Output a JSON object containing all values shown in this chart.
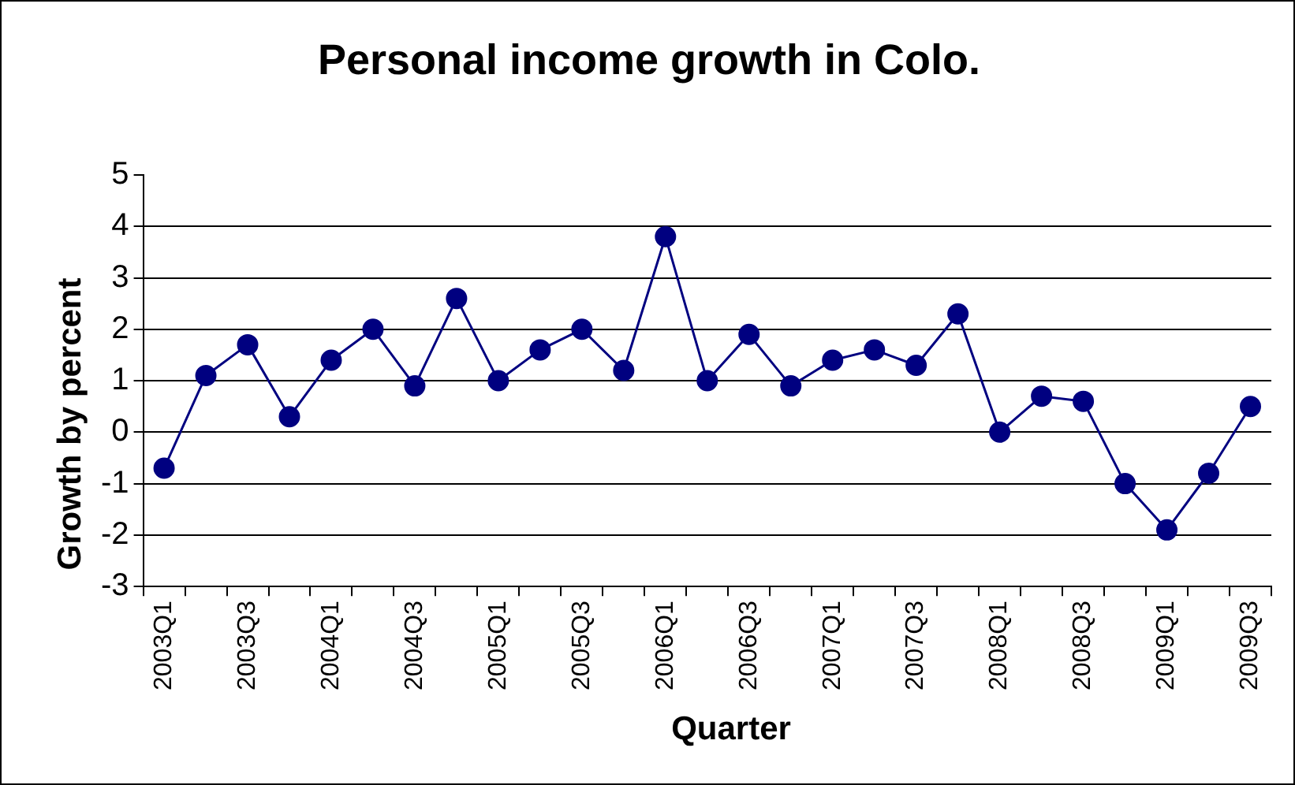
{
  "chart_data": {
    "type": "line",
    "title": "Personal income growth in Colo.",
    "xlabel": "Quarter",
    "ylabel": "Growth by percent",
    "categories": [
      "2003Q1",
      null,
      "2003Q3",
      null,
      "2004Q1",
      null,
      "2004Q3",
      null,
      "2005Q1",
      null,
      "2005Q3",
      null,
      "2006Q1",
      null,
      "2006Q3",
      null,
      "2007Q1",
      null,
      "2007Q3",
      null,
      "2008Q1",
      null,
      "2008Q3",
      null,
      "2009Q1",
      null,
      "2009Q3"
    ],
    "series": [
      {
        "color": "#000080",
        "values": [
          -0.7,
          1.1,
          1.7,
          0.3,
          1.4,
          2.0,
          0.9,
          2.6,
          1.0,
          1.6,
          2.0,
          1.2,
          3.8,
          1.0,
          1.9,
          0.9,
          1.4,
          1.6,
          1.3,
          2.3,
          0.0,
          0.7,
          0.6,
          -1.0,
          -1.9,
          -0.8,
          0.5
        ]
      }
    ],
    "ylim": [
      -3,
      5
    ],
    "yticks": [
      -3,
      -2,
      -1,
      0,
      1,
      2,
      3,
      4,
      5
    ],
    "grid": "y",
    "legend": false,
    "marker": "circle",
    "line_style": "solid"
  }
}
